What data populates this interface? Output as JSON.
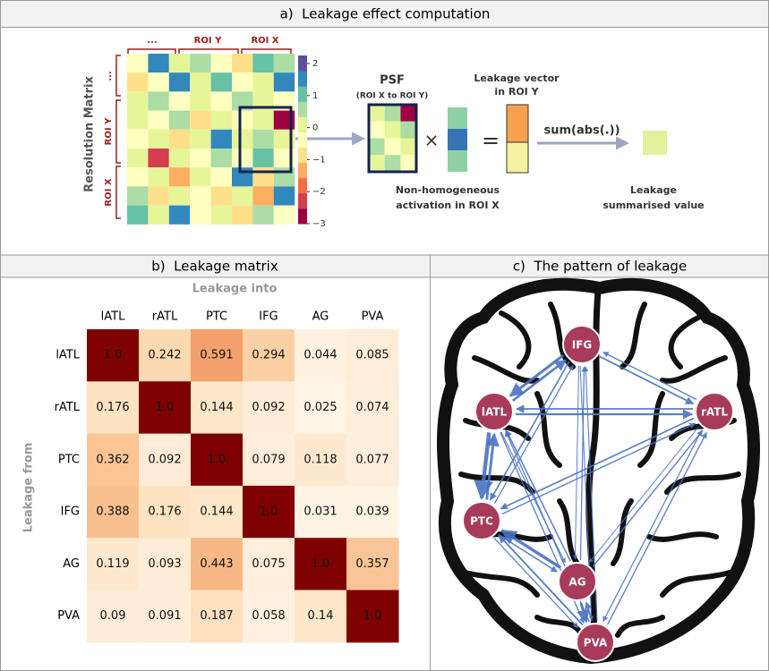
{
  "panel_a": {
    "title": "a)  Leakage effect computation",
    "matrix_label": "Resolution Matrix",
    "top_labels": [
      "...",
      "ROI Y",
      "ROI X"
    ],
    "side_labels": [
      "...",
      "ROI Y",
      "ROI X"
    ],
    "colorbar": {
      "lim": [
        -3,
        2.25
      ],
      "ticks": [
        2,
        1,
        0,
        {
          "value": -1,
          "label": "−1"
        },
        {
          "value": -2,
          "label": "−2"
        },
        {
          "value": -3,
          "label": "−3"
        }
      ]
    },
    "psf_title": "PSF",
    "psf_subtitle": "(ROI X to ROI Y)",
    "times": "×",
    "equals": "=",
    "vector_title": [
      "Leakage vector",
      "in ROI Y"
    ],
    "operation": "sum(abs(.))",
    "activation_caption": [
      "Non-homogeneous",
      "activation in ROI X"
    ],
    "summary_caption": [
      "Leakage",
      "summarised value"
    ]
  },
  "chart_data": {
    "type": "heatmap",
    "title": "b)  Leakage matrix",
    "x_label": "Leakage into",
    "y_label": "Leakage from",
    "x_categories": [
      "lATL",
      "rATL",
      "PTC",
      "IFG",
      "AG",
      "PVA"
    ],
    "y_categories": [
      "lATL",
      "rATL",
      "PTC",
      "IFG",
      "AG",
      "PVA"
    ],
    "values": [
      [
        1.0,
        0.242,
        0.591,
        0.294,
        0.044,
        0.085
      ],
      [
        0.176,
        1.0,
        0.144,
        0.092,
        0.025,
        0.074
      ],
      [
        0.362,
        0.092,
        1.0,
        0.079,
        0.118,
        0.077
      ],
      [
        0.388,
        0.176,
        0.144,
        1.0,
        0.031,
        0.039
      ],
      [
        0.119,
        0.093,
        0.443,
        0.075,
        1.0,
        0.357
      ],
      [
        0.09,
        0.091,
        0.187,
        0.058,
        0.14,
        1.0
      ]
    ],
    "value_labels": [
      [
        "1.0",
        "0.242",
        "0.591",
        "0.294",
        "0.044",
        "0.085"
      ],
      [
        "0.176",
        "1.0",
        "0.144",
        "0.092",
        "0.025",
        "0.074"
      ],
      [
        "0.362",
        "0.092",
        "1.0",
        "0.079",
        "0.118",
        "0.077"
      ],
      [
        "0.388",
        "0.176",
        "0.144",
        "1.0",
        "0.031",
        "0.039"
      ],
      [
        "0.119",
        "0.093",
        "0.443",
        "0.075",
        "1.0",
        "0.357"
      ],
      [
        "0.09",
        "0.091",
        "0.187",
        "0.058",
        "0.14",
        "1.0"
      ]
    ]
  },
  "panel_c": {
    "title": "c)  The pattern of leakage",
    "nodes": [
      "lATL",
      "rATL",
      "PTC",
      "IFG",
      "AG",
      "PVA"
    ]
  }
}
